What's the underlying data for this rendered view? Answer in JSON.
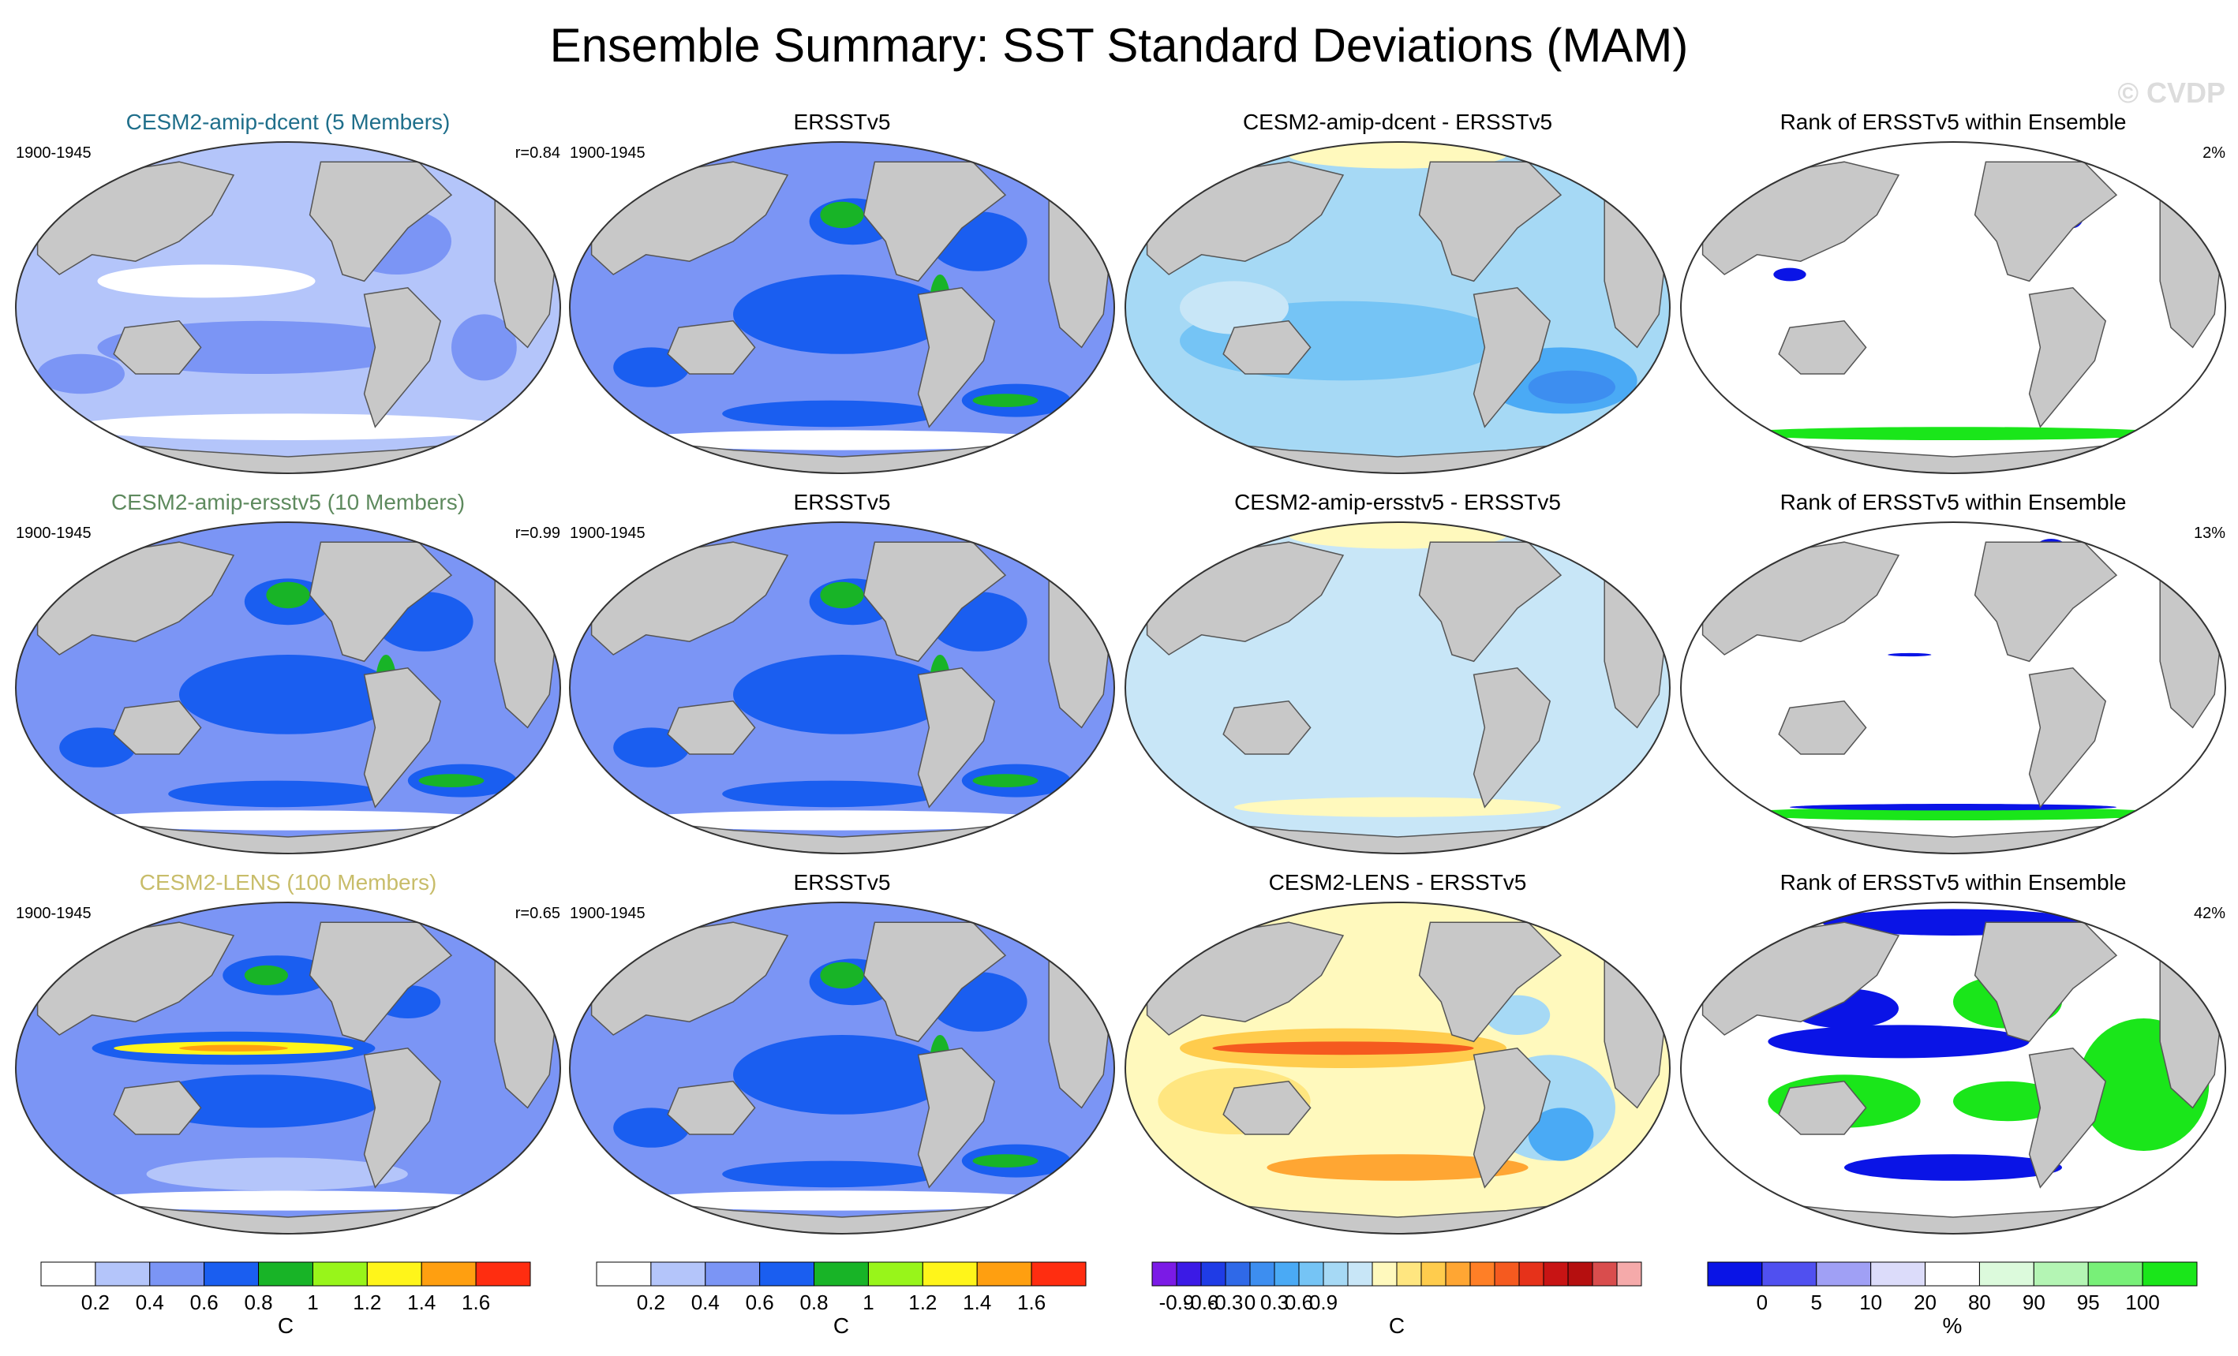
{
  "figure": {
    "title": "Ensemble Summary: SST Standard Deviations (MAM)",
    "watermark": "© CVDP",
    "colors": {
      "land": "#c8c8c8",
      "ocean_edge": "#ffffff",
      "title_dcent": "#1f6f8b",
      "title_ersstv5_ens": "#5e8a5e",
      "title_lens": "#c8bd6a"
    }
  },
  "chart_data": [
    {
      "type": "map",
      "row": 1,
      "col": 1,
      "title": "CESM2-amip-dcent (5 Members)",
      "title_color": "title_dcent",
      "left_label": "1900-1945",
      "right_label": "r=0.84",
      "field": "sd",
      "pattern": "dcent",
      "colorbar": "sd"
    },
    {
      "type": "map",
      "row": 1,
      "col": 2,
      "title": "ERSSTv5",
      "left_label": "1900-1945",
      "right_label": "",
      "field": "sd",
      "pattern": "obs",
      "colorbar": "sd"
    },
    {
      "type": "map",
      "row": 1,
      "col": 3,
      "title": "CESM2-amip-dcent - ERSSTv5",
      "left_label": "",
      "right_label": "",
      "field": "diff",
      "pattern": "dcent_diff",
      "colorbar": "diff"
    },
    {
      "type": "map",
      "row": 1,
      "col": 4,
      "title": "Rank of ERSSTv5 within Ensemble",
      "left_label": "",
      "right_label": "2%",
      "field": "rank",
      "pattern": "rank_dcent",
      "colorbar": "rank"
    },
    {
      "type": "map",
      "row": 2,
      "col": 1,
      "title": "CESM2-amip-ersstv5 (10 Members)",
      "title_color": "title_ersstv5_ens",
      "left_label": "1900-1945",
      "right_label": "r=0.99",
      "field": "sd",
      "pattern": "ersst_ens",
      "colorbar": "sd"
    },
    {
      "type": "map",
      "row": 2,
      "col": 2,
      "title": "ERSSTv5",
      "left_label": "1900-1945",
      "right_label": "",
      "field": "sd",
      "pattern": "obs",
      "colorbar": "sd"
    },
    {
      "type": "map",
      "row": 2,
      "col": 3,
      "title": "CESM2-amip-ersstv5 - ERSSTv5",
      "left_label": "",
      "right_label": "",
      "field": "diff",
      "pattern": "ersst_diff",
      "colorbar": "diff"
    },
    {
      "type": "map",
      "row": 2,
      "col": 4,
      "title": "Rank of ERSSTv5 within Ensemble",
      "left_label": "",
      "right_label": "13%",
      "field": "rank",
      "pattern": "rank_ersst",
      "colorbar": "rank"
    },
    {
      "type": "map",
      "row": 3,
      "col": 1,
      "title": "CESM2-LENS (100 Members)",
      "title_color": "title_lens",
      "left_label": "1900-1945",
      "right_label": "r=0.65",
      "field": "sd",
      "pattern": "lens",
      "colorbar": "sd"
    },
    {
      "type": "map",
      "row": 3,
      "col": 2,
      "title": "ERSSTv5",
      "left_label": "1900-1945",
      "right_label": "",
      "field": "sd",
      "pattern": "obs",
      "colorbar": "sd"
    },
    {
      "type": "map",
      "row": 3,
      "col": 3,
      "title": "CESM2-LENS - ERSSTv5",
      "left_label": "",
      "right_label": "",
      "field": "diff",
      "pattern": "lens_diff",
      "colorbar": "diff"
    },
    {
      "type": "map",
      "row": 3,
      "col": 4,
      "title": "Rank of ERSSTv5 within Ensemble",
      "left_label": "",
      "right_label": "42%",
      "field": "rank",
      "pattern": "rank_lens",
      "colorbar": "rank"
    }
  ],
  "colorbars": {
    "sd": {
      "unit": "C",
      "colors": [
        "#ffffff",
        "#b4c5fa",
        "#7b95f5",
        "#1a5ef0",
        "#18b427",
        "#98f51a",
        "#fff51a",
        "#ff9f10",
        "#ff2d10"
      ],
      "ticks": [
        "0.2",
        "0.4",
        "0.6",
        "0.8",
        "1",
        "1.2",
        "1.4",
        "1.6"
      ]
    },
    "diff": {
      "unit": "C",
      "colors": [
        "#7b1ae6",
        "#3b1ae6",
        "#1f3ce6",
        "#2f69e8",
        "#3d8ef0",
        "#4aaaf5",
        "#75c4f5",
        "#a6d9f5",
        "#c8e6f7",
        "#fff9bd",
        "#ffe680",
        "#ffcc4d",
        "#ffa633",
        "#ff7f26",
        "#f55a1f",
        "#e6321a",
        "#c81414",
        "#b50f0f",
        "#d94d4d",
        "#f5aaaa"
      ],
      "ticks": [
        "-0.9",
        "-0.6",
        "-0.3",
        "0",
        "0.3",
        "0.6",
        "0.9"
      ]
    },
    "rank": {
      "unit": "%",
      "colors": [
        "#0a14e6",
        "#5050f0",
        "#a0a0f5",
        "#dcdcfa",
        "#ffffff",
        "#dcfadc",
        "#b4f5b4",
        "#78f078",
        "#1ae61a"
      ],
      "ticks": [
        "0",
        "5",
        "10",
        "20",
        "80",
        "90",
        "95",
        "100"
      ]
    }
  }
}
